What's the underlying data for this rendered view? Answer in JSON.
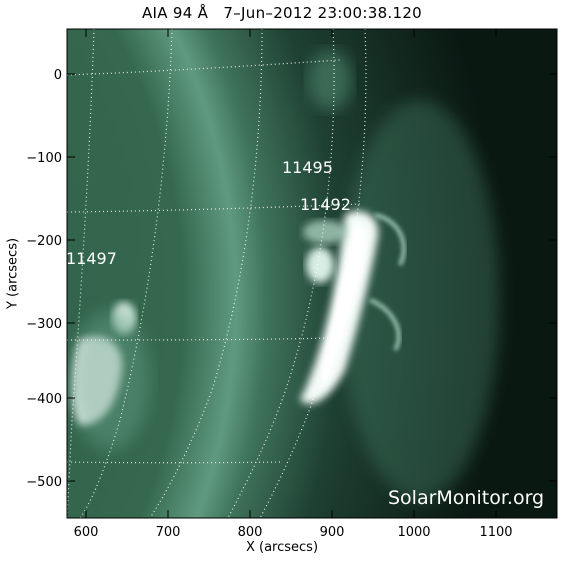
{
  "title": "AIA 94 Å   7–Jun–2012 23:00:38.120",
  "xlabel": "X (arcsecs)",
  "ylabel": "Y (arcsecs)",
  "x_ticks": [
    "600",
    "700",
    "800",
    "900",
    "1000",
    "1100"
  ],
  "y_ticks": [
    "0",
    "−100",
    "−200",
    "−300",
    "−400",
    "−500"
  ],
  "active_regions": [
    "11495",
    "11492",
    "11497"
  ],
  "credit": "SolarMonitor.org",
  "colors": {
    "disk": "#2f5a48",
    "background": "#0b1a14",
    "bright": "#eaf7f1"
  }
}
